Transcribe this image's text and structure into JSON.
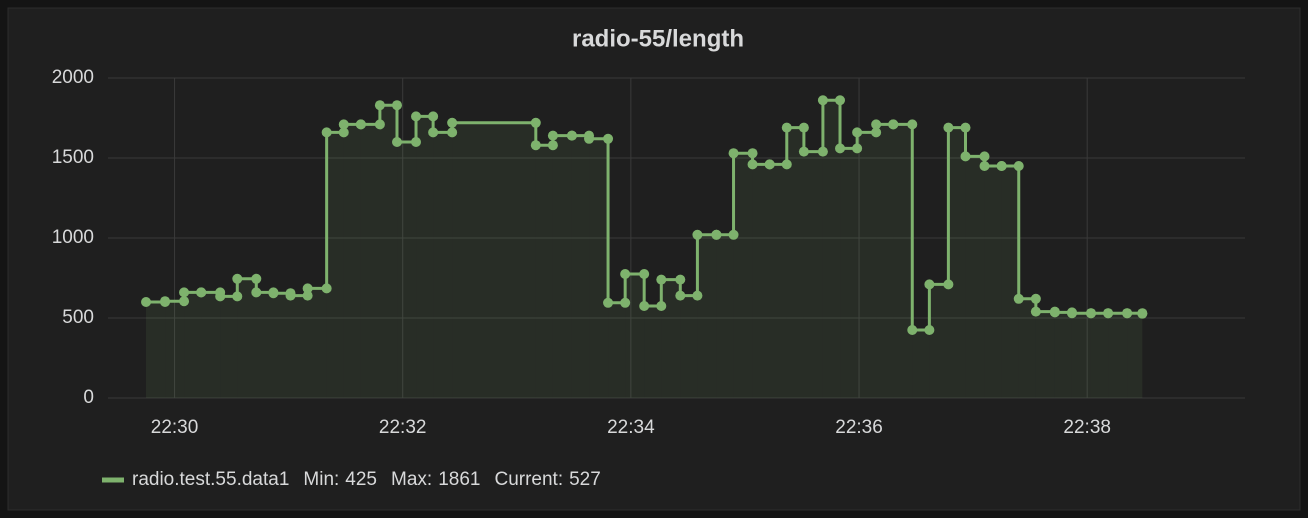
{
  "chart_data": {
    "type": "step-line",
    "title": "radio-55/length",
    "xlim": [
      "22:29:25",
      "22:39:23"
    ],
    "xticks": [
      "22:30",
      "22:32",
      "22:34",
      "22:36",
      "22:38"
    ],
    "ylim": [
      0,
      2000
    ],
    "yticks": [
      0,
      500,
      1000,
      1500,
      2000
    ],
    "grid": true,
    "series": [
      {
        "name": "radio.test.55.data1",
        "color": "#7eb26d",
        "x": [
          "22:29:45",
          "22:29:55",
          "22:30:05",
          "22:30:14",
          "22:30:24",
          "22:30:33",
          "22:30:43",
          "22:30:52",
          "22:31:01",
          "22:31:10",
          "22:31:20",
          "22:31:29",
          "22:31:38",
          "22:31:48",
          "22:31:57",
          "22:32:07",
          "22:32:16",
          "22:32:26",
          "22:33:10",
          "22:33:19",
          "22:33:29",
          "22:33:38",
          "22:33:48",
          "22:33:57",
          "22:34:07",
          "22:34:16",
          "22:34:26",
          "22:34:35",
          "22:34:45",
          "22:34:54",
          "22:35:04",
          "22:35:13",
          "22:35:22",
          "22:35:31",
          "22:35:41",
          "22:35:50",
          "22:35:59",
          "22:36:09",
          "22:36:18",
          "22:36:28",
          "22:36:37",
          "22:36:47",
          "22:36:56",
          "22:37:06",
          "22:37:15",
          "22:37:24",
          "22:37:33",
          "22:37:43",
          "22:37:52",
          "22:38:02",
          "22:38:11",
          "22:38:21",
          "22:38:29"
        ],
        "values": [
          600,
          605,
          660,
          660,
          635,
          745,
          660,
          655,
          640,
          685,
          1660,
          1710,
          1710,
          1830,
          1600,
          1760,
          1660,
          1720,
          1580,
          1640,
          1640,
          1620,
          595,
          775,
          575,
          740,
          640,
          1020,
          1020,
          1530,
          1460,
          1460,
          1690,
          1540,
          1861,
          1560,
          1660,
          1710,
          1710,
          425,
          710,
          1690,
          1510,
          1450,
          1450,
          620,
          540,
          535,
          530,
          530,
          530,
          530,
          527
        ]
      }
    ],
    "legend_stats": [
      {
        "label": "Min:",
        "value": 425
      },
      {
        "label": "Max:",
        "value": 1861
      },
      {
        "label": "Current:",
        "value": 527
      }
    ]
  }
}
